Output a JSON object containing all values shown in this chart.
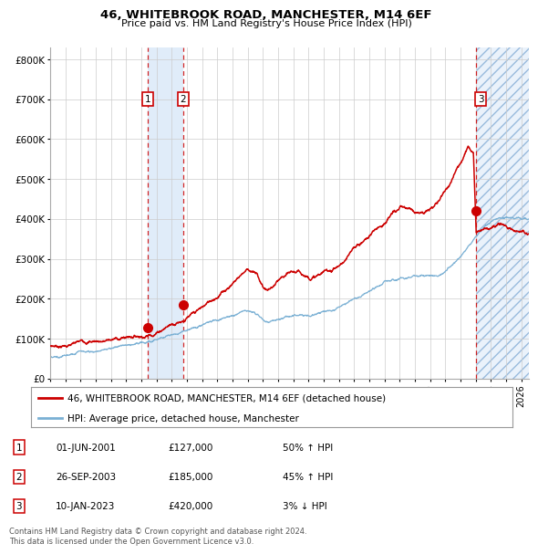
{
  "title": "46, WHITEBROOK ROAD, MANCHESTER, M14 6EF",
  "subtitle": "Price paid vs. HM Land Registry's House Price Index (HPI)",
  "legend_red": "46, WHITEBROOK ROAD, MANCHESTER, M14 6EF (detached house)",
  "legend_blue": "HPI: Average price, detached house, Manchester",
  "footer": "Contains HM Land Registry data © Crown copyright and database right 2024.\nThis data is licensed under the Open Government Licence v3.0.",
  "ylim": [
    0,
    830000
  ],
  "xlim_start": 1995.0,
  "xlim_end": 2026.5,
  "yticks": [
    0,
    100000,
    200000,
    300000,
    400000,
    500000,
    600000,
    700000,
    800000
  ],
  "ytick_labels": [
    "£0",
    "£100K",
    "£200K",
    "£300K",
    "£400K",
    "£500K",
    "£600K",
    "£700K",
    "£800K"
  ],
  "red_color": "#cc0000",
  "blue_color": "#7ab0d4",
  "sale1_x": 2001.42,
  "sale1_y": 127000,
  "sale2_x": 2003.74,
  "sale2_y": 185000,
  "sale3_x": 2023.03,
  "sale3_y": 420000,
  "anchors_red": [
    [
      1995.0,
      82000
    ],
    [
      1995.5,
      84000
    ],
    [
      1996.0,
      87000
    ],
    [
      1996.5,
      90000
    ],
    [
      1997.0,
      93000
    ],
    [
      1997.5,
      97000
    ],
    [
      1998.0,
      100000
    ],
    [
      1998.5,
      103000
    ],
    [
      1999.0,
      105000
    ],
    [
      1999.5,
      108000
    ],
    [
      2000.0,
      112000
    ],
    [
      2000.5,
      118000
    ],
    [
      2001.0,
      122000
    ],
    [
      2001.42,
      127000
    ],
    [
      2001.8,
      135000
    ],
    [
      2002.0,
      140000
    ],
    [
      2002.5,
      155000
    ],
    [
      2003.0,
      168000
    ],
    [
      2003.74,
      185000
    ],
    [
      2004.0,
      192000
    ],
    [
      2004.5,
      198000
    ],
    [
      2005.0,
      208000
    ],
    [
      2005.5,
      222000
    ],
    [
      2006.0,
      240000
    ],
    [
      2006.5,
      258000
    ],
    [
      2007.0,
      278000
    ],
    [
      2007.5,
      300000
    ],
    [
      2008.0,
      320000
    ],
    [
      2008.3,
      315000
    ],
    [
      2008.6,
      305000
    ],
    [
      2009.0,
      275000
    ],
    [
      2009.3,
      268000
    ],
    [
      2009.6,
      272000
    ],
    [
      2010.0,
      285000
    ],
    [
      2010.5,
      290000
    ],
    [
      2011.0,
      295000
    ],
    [
      2011.5,
      290000
    ],
    [
      2012.0,
      285000
    ],
    [
      2012.5,
      290000
    ],
    [
      2013.0,
      298000
    ],
    [
      2013.5,
      305000
    ],
    [
      2014.0,
      318000
    ],
    [
      2014.5,
      332000
    ],
    [
      2015.0,
      355000
    ],
    [
      2015.5,
      370000
    ],
    [
      2016.0,
      388000
    ],
    [
      2016.5,
      408000
    ],
    [
      2017.0,
      428000
    ],
    [
      2017.5,
      448000
    ],
    [
      2018.0,
      458000
    ],
    [
      2018.5,
      452000
    ],
    [
      2019.0,
      448000
    ],
    [
      2019.5,
      452000
    ],
    [
      2020.0,
      458000
    ],
    [
      2020.5,
      472000
    ],
    [
      2021.0,
      505000
    ],
    [
      2021.5,
      542000
    ],
    [
      2022.0,
      578000
    ],
    [
      2022.3,
      608000
    ],
    [
      2022.5,
      628000
    ],
    [
      2022.7,
      622000
    ],
    [
      2022.85,
      618000
    ],
    [
      2023.03,
      420000
    ],
    [
      2023.3,
      425000
    ],
    [
      2023.6,
      432000
    ],
    [
      2024.0,
      438000
    ],
    [
      2024.5,
      445000
    ],
    [
      2025.0,
      442000
    ],
    [
      2025.5,
      438000
    ],
    [
      2026.0,
      435000
    ],
    [
      2026.5,
      430000
    ]
  ],
  "anchors_blue": [
    [
      1995.0,
      55000
    ],
    [
      1995.5,
      57000
    ],
    [
      1996.0,
      60000
    ],
    [
      1996.5,
      63000
    ],
    [
      1997.0,
      67000
    ],
    [
      1997.5,
      70000
    ],
    [
      1998.0,
      74000
    ],
    [
      1998.5,
      77000
    ],
    [
      1999.0,
      81000
    ],
    [
      1999.5,
      85000
    ],
    [
      2000.0,
      89000
    ],
    [
      2000.5,
      93000
    ],
    [
      2001.0,
      97000
    ],
    [
      2001.5,
      102000
    ],
    [
      2002.0,
      108000
    ],
    [
      2002.5,
      113000
    ],
    [
      2003.0,
      119000
    ],
    [
      2003.5,
      126000
    ],
    [
      2004.0,
      133000
    ],
    [
      2004.5,
      140000
    ],
    [
      2005.0,
      147000
    ],
    [
      2005.5,
      154000
    ],
    [
      2006.0,
      161000
    ],
    [
      2006.5,
      168000
    ],
    [
      2007.0,
      176000
    ],
    [
      2007.5,
      182000
    ],
    [
      2008.0,
      186000
    ],
    [
      2008.3,
      184000
    ],
    [
      2008.7,
      178000
    ],
    [
      2009.0,
      168000
    ],
    [
      2009.3,
      163000
    ],
    [
      2009.6,
      165000
    ],
    [
      2010.0,
      170000
    ],
    [
      2010.5,
      173000
    ],
    [
      2011.0,
      174000
    ],
    [
      2011.5,
      172000
    ],
    [
      2012.0,
      170000
    ],
    [
      2012.5,
      172000
    ],
    [
      2013.0,
      175000
    ],
    [
      2013.5,
      180000
    ],
    [
      2014.0,
      188000
    ],
    [
      2014.5,
      196000
    ],
    [
      2015.0,
      208000
    ],
    [
      2015.5,
      218000
    ],
    [
      2016.0,
      228000
    ],
    [
      2016.5,
      238000
    ],
    [
      2017.0,
      248000
    ],
    [
      2017.5,
      256000
    ],
    [
      2018.0,
      264000
    ],
    [
      2018.5,
      268000
    ],
    [
      2019.0,
      272000
    ],
    [
      2019.5,
      276000
    ],
    [
      2020.0,
      278000
    ],
    [
      2020.5,
      282000
    ],
    [
      2021.0,
      295000
    ],
    [
      2021.5,
      312000
    ],
    [
      2022.0,
      335000
    ],
    [
      2022.5,
      362000
    ],
    [
      2023.0,
      388000
    ],
    [
      2023.03,
      390000
    ],
    [
      2023.5,
      408000
    ],
    [
      2024.0,
      425000
    ],
    [
      2024.5,
      435000
    ],
    [
      2025.0,
      440000
    ],
    [
      2025.5,
      438000
    ],
    [
      2026.0,
      436000
    ],
    [
      2026.5,
      434000
    ]
  ]
}
